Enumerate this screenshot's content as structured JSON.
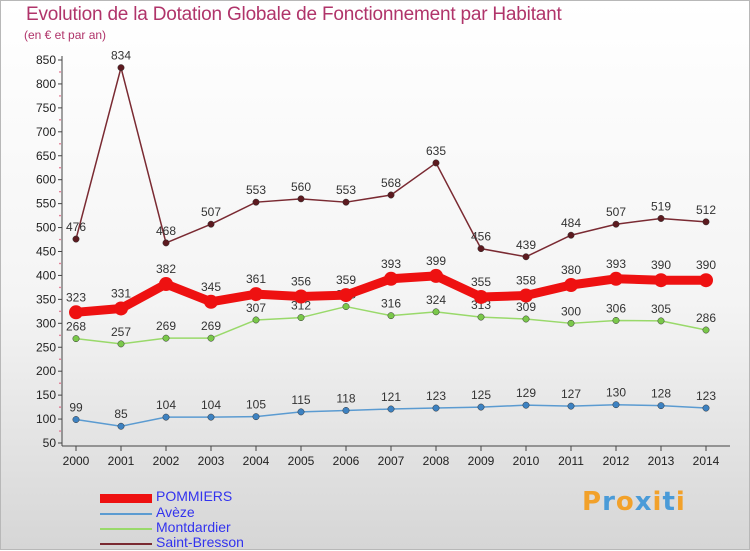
{
  "title": "Evolution de la Dotation Globale de Fonctionnement par Habitant",
  "subtitle": "(en € et par an)",
  "logo": {
    "letters": [
      "P",
      "r",
      "o",
      "x",
      "i",
      "t",
      "i"
    ],
    "colors": [
      "#f2a12a",
      "#4a9bd8",
      "#f2a12a",
      "#4a9bd8",
      "#f2a12a",
      "#4a9bd8",
      "#f2a12a"
    ]
  },
  "chart_data": {
    "type": "line",
    "title": "Evolution de la Dotation Globale de Fonctionnement par Habitant",
    "ylabel": "(en € et par an)",
    "xlabel": "",
    "ylim": [
      50,
      850
    ],
    "ytick_step": 50,
    "grid": false,
    "legend_position": "bottom-left",
    "x": [
      "2000",
      "2001",
      "2002",
      "2003",
      "2004",
      "2005",
      "2006",
      "2007",
      "2008",
      "2009",
      "2010",
      "2011",
      "2012",
      "2013",
      "2014"
    ],
    "series": [
      {
        "name": "Saint-Bresson",
        "color": "#7a2a32",
        "marker": "#5c1a1f",
        "highlight": false,
        "values": [
          476,
          834,
          468,
          507,
          553,
          560,
          553,
          568,
          635,
          456,
          439,
          484,
          507,
          519,
          512
        ]
      },
      {
        "name": "Montdardier",
        "color": "#99d96a",
        "marker": "#7ac84a",
        "highlight": false,
        "values": [
          268,
          257,
          269,
          269,
          307,
          312,
          335,
          316,
          324,
          313,
          309,
          300,
          306,
          305,
          286
        ]
      },
      {
        "name": "Avèze",
        "color": "#5b9bd1",
        "marker": "#3d82c2",
        "highlight": false,
        "values": [
          99,
          85,
          104,
          104,
          105,
          115,
          118,
          121,
          123,
          125,
          129,
          127,
          130,
          128,
          123
        ]
      },
      {
        "name": "POMMIERS",
        "color": "#ee1111",
        "marker": "#ee1111",
        "highlight": true,
        "values": [
          323,
          331,
          382,
          345,
          361,
          356,
          359,
          393,
          399,
          355,
          358,
          380,
          393,
          390,
          390
        ]
      }
    ],
    "legend": [
      {
        "name": "POMMIERS",
        "color": "#ee1111",
        "label_color": "#3333ee"
      },
      {
        "name": "Avèze",
        "color": "#5b9bd1",
        "label_color": "#3333ee"
      },
      {
        "name": "Montdardier",
        "color": "#99d96a",
        "label_color": "#3333ee"
      },
      {
        "name": "Saint-Bresson",
        "color": "#7a2a32",
        "label_color": "#3333ee"
      }
    ]
  }
}
